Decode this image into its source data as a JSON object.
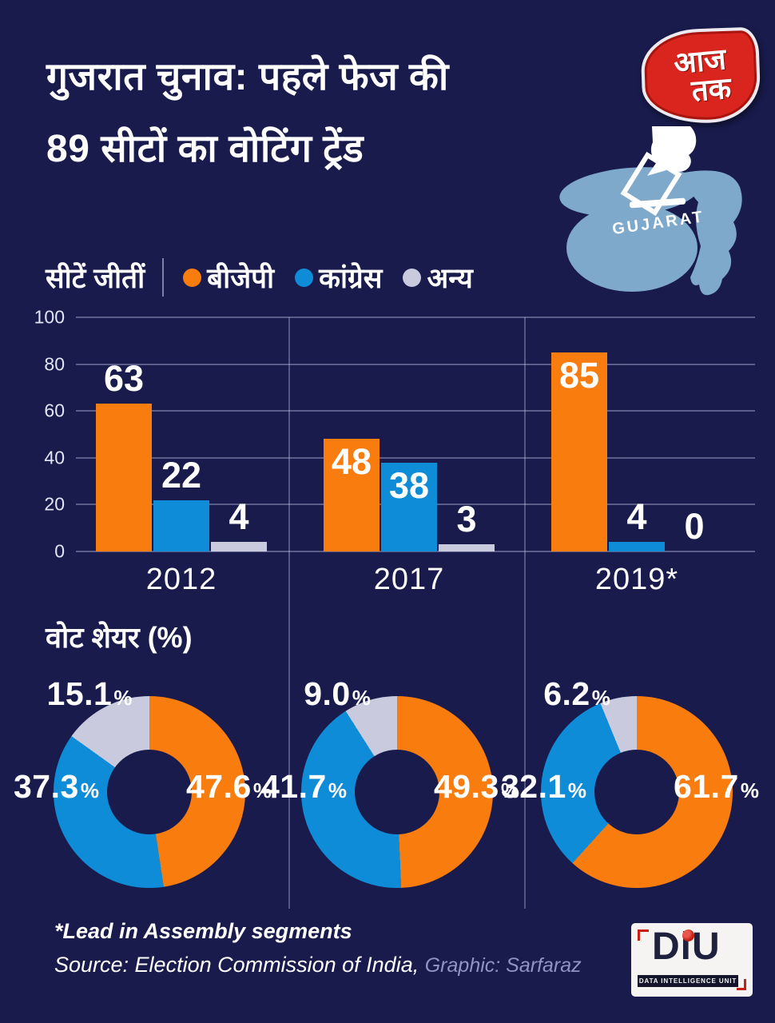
{
  "header": {
    "title_line1": "गुजरात चुनाव: पहले फेज की",
    "title_line2": "89 सीटों का वोटिंग ट्रेंड"
  },
  "brand": {
    "line1": "आज",
    "line2": "तक"
  },
  "map": {
    "label": "GUJARAT"
  },
  "legend": {
    "title": "सीटें जीतीं",
    "items": [
      {
        "label": "बीजेपी",
        "color": "#f87c0e"
      },
      {
        "label": "कांग्रेस",
        "color": "#0e8cd8"
      },
      {
        "label": "अन्य",
        "color": "#c9cade"
      }
    ]
  },
  "share_heading": "वोट शेयर (%)",
  "chart_data": [
    {
      "type": "bar",
      "title": "सीटें जीतीं",
      "categories": [
        "2012",
        "2017",
        "2019*"
      ],
      "series": [
        {
          "name": "बीजेपी",
          "color": "#f87c0e",
          "values": [
            63,
            48,
            85
          ]
        },
        {
          "name": "कांग्रेस",
          "color": "#0e8cd8",
          "values": [
            22,
            38,
            4
          ]
        },
        {
          "name": "अन्य",
          "color": "#c9cade",
          "values": [
            4,
            3,
            0
          ]
        }
      ],
      "ylim": [
        0,
        100
      ],
      "yticks": [
        0,
        20,
        40,
        60,
        80,
        100
      ],
      "grid": true,
      "legend_position": "top",
      "label_inside": [
        [
          false,
          true,
          true
        ],
        [
          false,
          true,
          false
        ],
        [
          false,
          false,
          false
        ]
      ]
    },
    {
      "type": "pie",
      "title": "वोट शेयर (%)",
      "donut": true,
      "groups": [
        {
          "category": "2012",
          "slices": [
            {
              "name": "बीजेपी",
              "value": 47.6,
              "display": "47.6",
              "color": "#f87c0e"
            },
            {
              "name": "कांग्रेस",
              "value": 37.3,
              "display": "37.3",
              "color": "#0e8cd8"
            },
            {
              "name": "अन्य",
              "value": 15.1,
              "display": "15.1",
              "color": "#c9cade"
            }
          ]
        },
        {
          "category": "2017",
          "slices": [
            {
              "name": "बीजेपी",
              "value": 49.3,
              "display": "49.3",
              "color": "#f87c0e"
            },
            {
              "name": "कांग्रेस",
              "value": 41.7,
              "display": "41.7",
              "color": "#0e8cd8"
            },
            {
              "name": "अन्य",
              "value": 9.0,
              "display": "9.0",
              "color": "#c9cade"
            }
          ]
        },
        {
          "category": "2019",
          "slices": [
            {
              "name": "बीजेपी",
              "value": 61.7,
              "display": "61.7",
              "color": "#f87c0e"
            },
            {
              "name": "कांग्रेस",
              "value": 32.1,
              "display": "32.1",
              "color": "#0e8cd8"
            },
            {
              "name": "अन्य",
              "value": 6.2,
              "display": "6.2",
              "color": "#c9cade"
            }
          ]
        }
      ]
    }
  ],
  "footer": {
    "note": "*Lead in Assembly segments",
    "source": "Source: Election Commission of India,",
    "credit": "Graphic: Sarfaraz"
  },
  "diu": {
    "name": "DiU",
    "tagline": "DATA INTELLIGENCE UNIT"
  }
}
